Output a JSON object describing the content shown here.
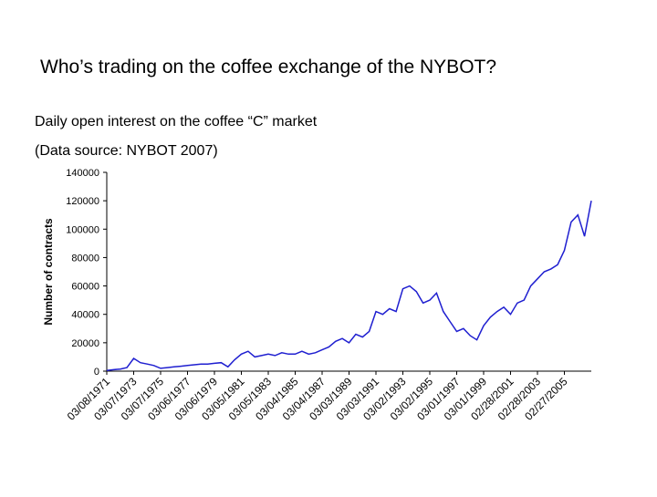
{
  "chart_data": {
    "type": "line",
    "title": "Who’s trading on the coffee exchange of the NYBOT?",
    "subtitle": "Daily open interest on the coffee “C” market",
    "source": "(Data source: NYBOT 2007)",
    "y_label": "Number of contracts",
    "categories": [
      "03/08/1971",
      null,
      null,
      null,
      "03/07/1973",
      null,
      null,
      null,
      "03/07/1975",
      null,
      null,
      null,
      "03/06/1977",
      null,
      null,
      null,
      "03/06/1979",
      null,
      null,
      null,
      "03/05/1981",
      null,
      null,
      null,
      "03/05/1983",
      null,
      null,
      null,
      "03/04/1985",
      null,
      null,
      null,
      "03/04/1987",
      null,
      null,
      null,
      "03/03/1989",
      null,
      null,
      null,
      "03/03/1991",
      null,
      null,
      null,
      "03/02/1993",
      null,
      null,
      null,
      "03/02/1995",
      null,
      null,
      null,
      "03/01/1997",
      null,
      null,
      null,
      "03/01/1999",
      null,
      null,
      null,
      "02/28/2001",
      null,
      null,
      null,
      "02/28/2003",
      null,
      null,
      null,
      "02/27/2005",
      null,
      null,
      null,
      null
    ],
    "series": [
      {
        "name": "Open interest",
        "color": "#1f1fd0",
        "values": [
          500,
          1000,
          1500,
          2500,
          9000,
          6000,
          5000,
          4000,
          2000,
          2500,
          3000,
          3500,
          4000,
          4500,
          5000,
          5000,
          5500,
          6000,
          3000,
          8000,
          12000,
          14000,
          10000,
          11000,
          12000,
          11000,
          13000,
          12000,
          12000,
          14000,
          12000,
          13000,
          15000,
          17000,
          21000,
          23000,
          20000,
          26000,
          24000,
          28000,
          42000,
          40000,
          44000,
          42000,
          58000,
          60000,
          56000,
          48000,
          50000,
          55000,
          42000,
          35000,
          28000,
          30000,
          25000,
          22000,
          32000,
          38000,
          42000,
          45000,
          40000,
          48000,
          50000,
          60000,
          65000,
          70000,
          72000,
          75000,
          85000,
          105000,
          110000,
          95000,
          120000
        ]
      }
    ],
    "ylim": [
      0,
      140000
    ],
    "yticks": [
      0,
      20000,
      40000,
      60000,
      80000,
      100000,
      120000,
      140000
    ]
  }
}
